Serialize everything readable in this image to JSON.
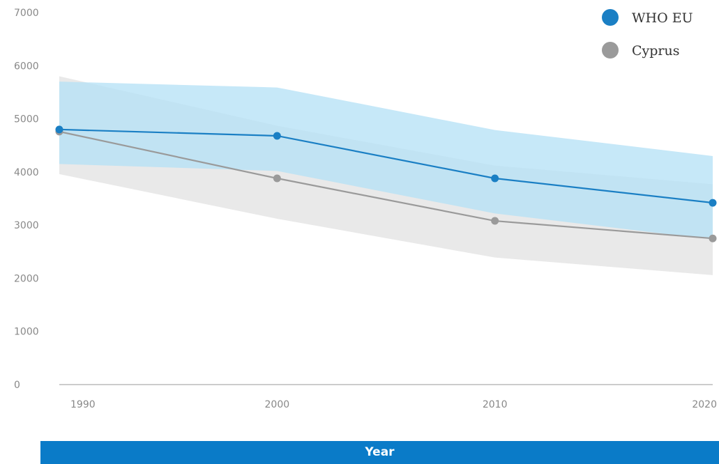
{
  "chart_data": {
    "type": "line",
    "title": "",
    "xlabel": "Year",
    "ylabel": "",
    "x": [
      1990,
      2000,
      2010,
      2020
    ],
    "ylim": [
      0,
      7000
    ],
    "yticks": [
      0,
      1000,
      2000,
      3000,
      4000,
      5000,
      6000,
      7000
    ],
    "grid": false,
    "legend": "top-right",
    "series": [
      {
        "name": "WHO EU",
        "color": "#1a7fc4",
        "band_color": "#b3e0f5",
        "values": [
          4800,
          4680,
          3880,
          3420
        ],
        "band_upper": [
          5700,
          5590,
          4790,
          4300
        ],
        "band_lower": [
          4150,
          4020,
          3220,
          2730
        ]
      },
      {
        "name": "Cyprus",
        "color": "#9a9a9a",
        "band_color": "#e9e9e9",
        "values": [
          4760,
          3880,
          3080,
          2750
        ],
        "band_upper": [
          5800,
          4870,
          4120,
          3770
        ],
        "band_lower": [
          3960,
          3120,
          2390,
          2060
        ]
      }
    ]
  }
}
